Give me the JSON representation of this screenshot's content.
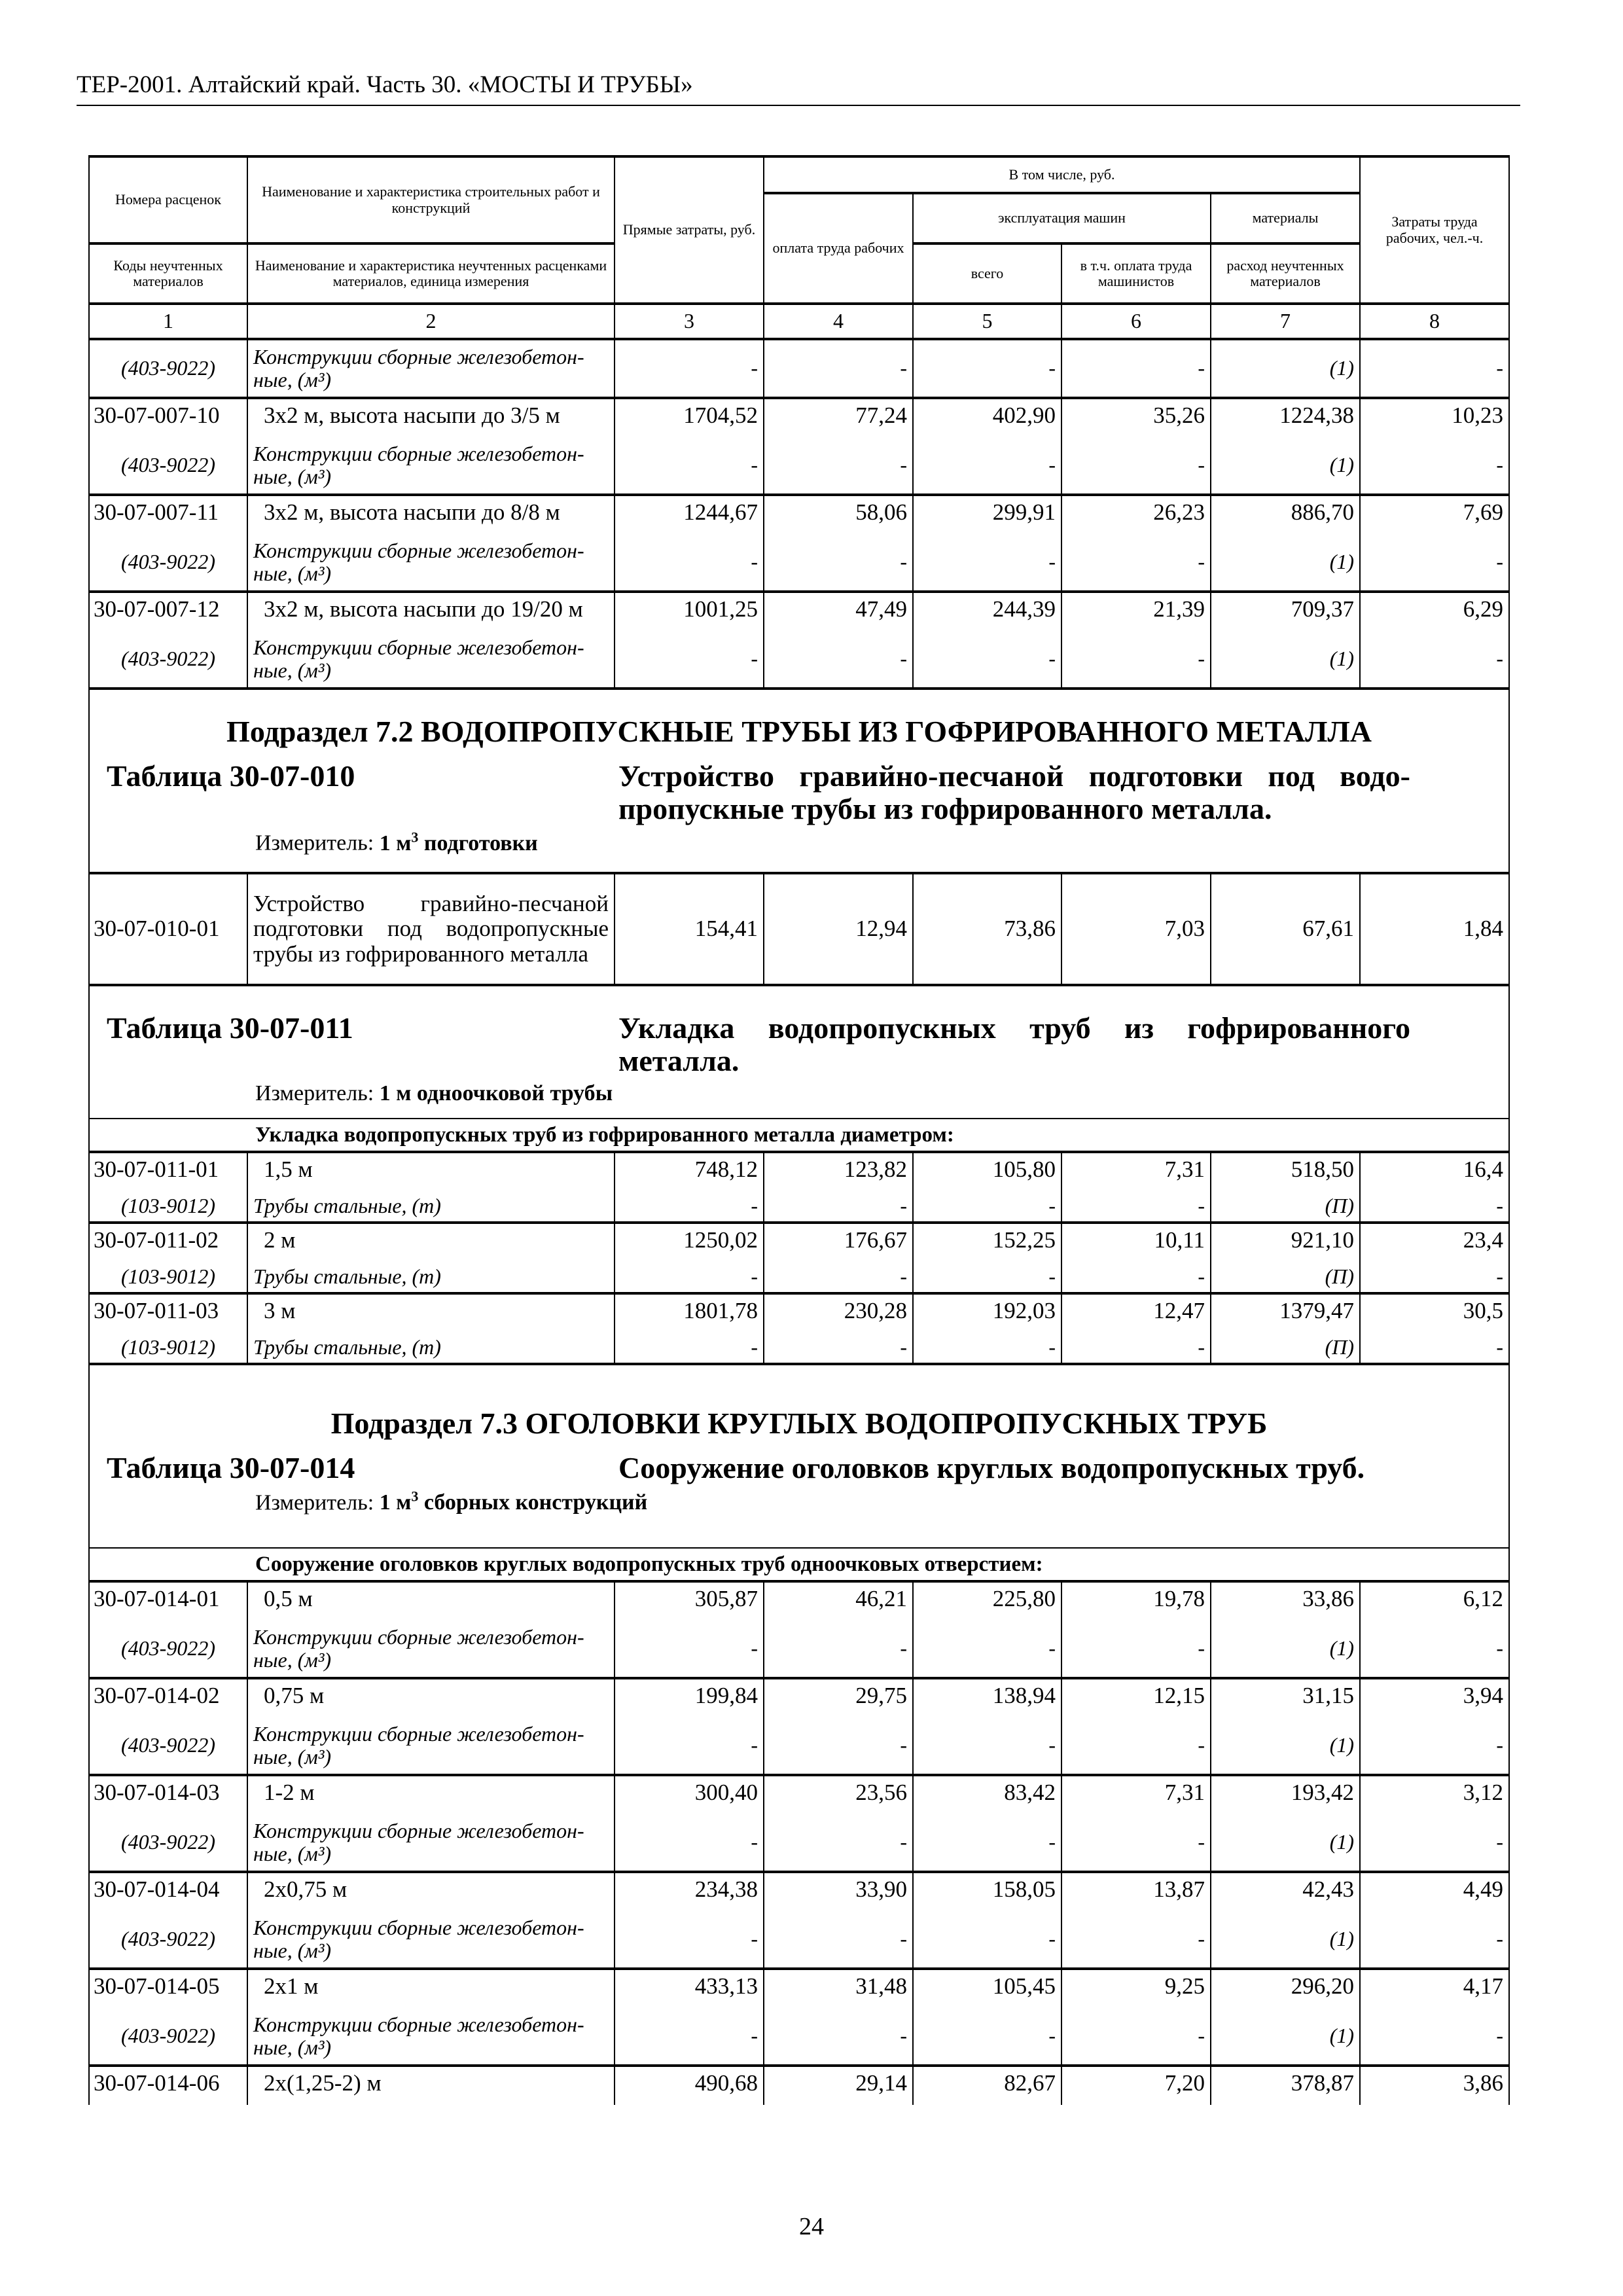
{
  "running_header": "ТЕР-2001. Алтайский край. Часть 30. «МОСТЫ И ТРУБЫ»",
  "page_number": "24",
  "table_header": {
    "rate_numbers": "Номера расценок",
    "work_name": "Наименование и характеристика строительных работ и конструкций",
    "including": "В том числе, руб.",
    "machines": "эксплуатация машин",
    "materials": "материалы",
    "material_codes": "Коды неучтенных материалов",
    "material_name": "Наименование и характеристика неучтенных расценками материалов, единица измерения",
    "direct_costs": "Прямые затраты, руб.",
    "labor_pay": "оплата труда рабочих",
    "total": "всего",
    "machinist_pay": "в т.ч. оплата труда машинистов",
    "material_use": "расход неучтенных материалов",
    "labor_hours": "Затраты труда рабочих, чел.-ч.",
    "column_numbers": [
      "1",
      "2",
      "3",
      "4",
      "5",
      "6",
      "7",
      "8"
    ]
  },
  "rows": [
    {
      "type": "sub",
      "group_start": false,
      "code": "(403-9022)",
      "name": "Конструкции сборные железобетон­ные, (м³)",
      "values": [
        "-",
        "-",
        "-",
        "-",
        "(1)",
        "-"
      ]
    },
    {
      "type": "main",
      "code": "30-07-007-10",
      "name": "3х2 м, высота насыпи до 3/5 м",
      "values": [
        "1704,52",
        "77,24",
        "402,90",
        "35,26",
        "1224,38",
        "10,23"
      ]
    },
    {
      "type": "sub",
      "code": "(403-9022)",
      "name": "Конструкции сборные железобетон­ные, (м³)",
      "values": [
        "-",
        "-",
        "-",
        "-",
        "(1)",
        "-"
      ]
    },
    {
      "type": "main",
      "code": "30-07-007-11",
      "name": "3х2 м, высота насыпи до 8/8 м",
      "values": [
        "1244,67",
        "58,06",
        "299,91",
        "26,23",
        "886,70",
        "7,69"
      ]
    },
    {
      "type": "sub",
      "code": "(403-9022)",
      "name": "Конструкции сборные железобетон­ные, (м³)",
      "values": [
        "-",
        "-",
        "-",
        "-",
        "(1)",
        "-"
      ]
    },
    {
      "type": "main",
      "code": "30-07-007-12",
      "name": "3х2 м, высота насыпи до 19/20 м",
      "values": [
        "1001,25",
        "47,49",
        "244,39",
        "21,39",
        "709,37",
        "6,29"
      ]
    },
    {
      "type": "sub",
      "code": "(403-9022)",
      "name": "Конструкции сборные железобетон­ные, (м³)",
      "values": [
        "-",
        "-",
        "-",
        "-",
        "(1)",
        "-"
      ]
    },
    {
      "type": "block",
      "section_title": "Подраздел 7.2 ВОДОПРОПУСКНЫЕ ТРУБЫ ИЗ ГОФРИРОВАННОГО МЕТАЛЛА",
      "table_number": "Таблица 30-07-010",
      "description": "Устройство гравийно-песчаной подготовки под водо­пропускные трубы из гофрированного металла.",
      "measure_label": "Измеритель:",
      "measure_value": "1 м³ подготовки"
    },
    {
      "type": "single",
      "code": "30-07-010-01",
      "name": "Устройство гравийно-песчаной подготовки под водопропуск­ные трубы из гофрированного металла",
      "values": [
        "154,41",
        "12,94",
        "73,86",
        "7,03",
        "67,61",
        "1,84"
      ]
    },
    {
      "type": "block",
      "section_title": "",
      "table_number": "Таблица 30-07-011",
      "description": "Укладка водопропускных труб из гофрированного металла.",
      "measure_label": "Измеритель:",
      "measure_value": "1 м одноочковой трубы"
    },
    {
      "type": "subhead",
      "text": "Укладка водопропускных труб из гофрированного металла диаметром:"
    },
    {
      "type": "main",
      "code": "30-07-011-01",
      "name": "1,5 м",
      "values": [
        "748,12",
        "123,82",
        "105,80",
        "7,31",
        "518,50",
        "16,4"
      ]
    },
    {
      "type": "sub",
      "short": true,
      "code": "(103-9012)",
      "name": "Трубы стальные, (т)",
      "values": [
        "-",
        "-",
        "-",
        "-",
        "(П)",
        "-"
      ]
    },
    {
      "type": "main",
      "code": "30-07-011-02",
      "name": "2 м",
      "values": [
        "1250,02",
        "176,67",
        "152,25",
        "10,11",
        "921,10",
        "23,4"
      ]
    },
    {
      "type": "sub",
      "short": true,
      "code": "(103-9012)",
      "name": "Трубы стальные, (т)",
      "values": [
        "-",
        "-",
        "-",
        "-",
        "(П)",
        "-"
      ]
    },
    {
      "type": "main",
      "code": "30-07-011-03",
      "name": "3 м",
      "values": [
        "1801,78",
        "230,28",
        "192,03",
        "12,47",
        "1379,47",
        "30,5"
      ]
    },
    {
      "type": "sub",
      "short": true,
      "code": "(103-9012)",
      "name": "Трубы стальные, (т)",
      "values": [
        "-",
        "-",
        "-",
        "-",
        "(П)",
        "-"
      ]
    },
    {
      "type": "block",
      "section_title": "Подраздел 7.3 ОГОЛОВКИ КРУГЛЫХ ВОДОПРОПУСКНЫХ ТРУБ",
      "table_number": "Таблица 30-07-014",
      "description": "Сооружение оголовков круглых водопропускных труб.",
      "measure_label": "Измеритель:",
      "measure_value": "1 м³ сборных конструкций"
    },
    {
      "type": "subhead",
      "text": "Сооружение оголовков круглых водопропускных труб одноочковых отверстием:"
    },
    {
      "type": "main",
      "code": "30-07-014-01",
      "name": "0,5 м",
      "values": [
        "305,87",
        "46,21",
        "225,80",
        "19,78",
        "33,86",
        "6,12"
      ]
    },
    {
      "type": "sub",
      "code": "(403-9022)",
      "name": "Конструкции сборные железобетон­ные, (м³)",
      "values": [
        "-",
        "-",
        "-",
        "-",
        "(1)",
        "-"
      ]
    },
    {
      "type": "main",
      "code": "30-07-014-02",
      "name": "0,75 м",
      "values": [
        "199,84",
        "29,75",
        "138,94",
        "12,15",
        "31,15",
        "3,94"
      ]
    },
    {
      "type": "sub",
      "code": "(403-9022)",
      "name": "Конструкции сборные железобетон­ные, (м³)",
      "values": [
        "-",
        "-",
        "-",
        "-",
        "(1)",
        "-"
      ]
    },
    {
      "type": "main",
      "code": "30-07-014-03",
      "name": "1-2 м",
      "values": [
        "300,40",
        "23,56",
        "83,42",
        "7,31",
        "193,42",
        "3,12"
      ]
    },
    {
      "type": "sub",
      "code": "(403-9022)",
      "name": "Конструкции сборные железобетон­ные, (м³)",
      "values": [
        "-",
        "-",
        "-",
        "-",
        "(1)",
        "-"
      ]
    },
    {
      "type": "main",
      "code": "30-07-014-04",
      "name": "2х0,75 м",
      "values": [
        "234,38",
        "33,90",
        "158,05",
        "13,87",
        "42,43",
        "4,49"
      ]
    },
    {
      "type": "sub",
      "code": "(403-9022)",
      "name": "Конструкции сборные железобетон­ные, (м³)",
      "values": [
        "-",
        "-",
        "-",
        "-",
        "(1)",
        "-"
      ]
    },
    {
      "type": "main",
      "code": "30-07-014-05",
      "name": "2х1 м",
      "values": [
        "433,13",
        "31,48",
        "105,45",
        "9,25",
        "296,20",
        "4,17"
      ]
    },
    {
      "type": "sub",
      "code": "(403-9022)",
      "name": "Конструкции сборные железобетон­ные, (м³)",
      "values": [
        "-",
        "-",
        "-",
        "-",
        "(1)",
        "-"
      ]
    },
    {
      "type": "main",
      "code": "30-07-014-06",
      "name": "2х(1,25-2) м",
      "values": [
        "490,68",
        "29,14",
        "82,67",
        "7,20",
        "378,87",
        "3,86"
      ]
    }
  ]
}
